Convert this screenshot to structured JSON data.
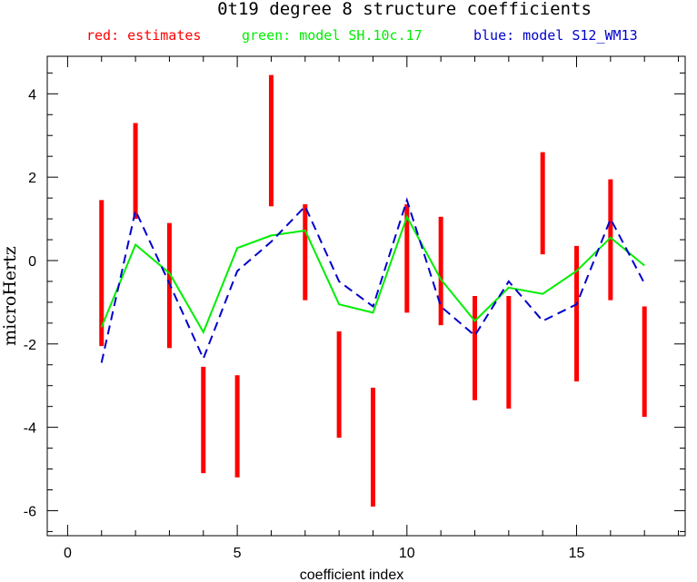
{
  "chart_data": {
    "type": "line",
    "title": "0t19 degree 8 structure coefficients",
    "legend": [
      {
        "text": "red: estimates",
        "color": "#ff0000"
      },
      {
        "text": "green: model SH.10c.17",
        "color": "#00ee00"
      },
      {
        "text": "blue: model S12_WM13",
        "color": "#0000cc"
      }
    ],
    "xlabel": "coefficient index",
    "ylabel": "microHertz",
    "xlim": [
      -0.6,
      18.2
    ],
    "ylim": [
      -6.6,
      4.9
    ],
    "x_ticks": [
      0,
      5,
      10,
      15
    ],
    "y_ticks": [
      -6,
      -4,
      -2,
      0,
      2,
      4
    ],
    "estimates": {
      "name": "red: estimates",
      "color": "#ff0000",
      "x": [
        1,
        2,
        3,
        4,
        5,
        6,
        7,
        8,
        9,
        10,
        11,
        12,
        13,
        14,
        15,
        16,
        17
      ],
      "low": [
        -2.05,
        1.0,
        -2.1,
        -5.1,
        -5.2,
        1.3,
        -0.95,
        -4.25,
        -5.9,
        -1.25,
        -1.55,
        -3.35,
        -3.55,
        0.15,
        -2.9,
        -0.95,
        -3.75
      ],
      "high": [
        1.45,
        3.3,
        0.9,
        -2.55,
        -2.75,
        4.45,
        1.35,
        -1.7,
        -3.05,
        1.35,
        1.05,
        -0.85,
        -0.85,
        2.6,
        0.35,
        1.95,
        -1.1
      ]
    },
    "series": [
      {
        "name": "green: model SH.10c.17",
        "color": "#00ee00",
        "dash": "solid",
        "x": [
          1,
          2,
          3,
          4,
          5,
          6,
          7,
          8,
          9,
          10,
          11,
          12,
          13,
          14,
          15,
          16,
          17
        ],
        "values": [
          -1.6,
          0.38,
          -0.3,
          -1.72,
          0.3,
          0.6,
          0.72,
          -1.05,
          -1.25,
          1.05,
          -0.45,
          -1.45,
          -0.65,
          -0.8,
          -0.25,
          0.55,
          -0.12
        ]
      },
      {
        "name": "blue: model S12_WM13",
        "color": "#0000cc",
        "dash": "dashed",
        "x": [
          1,
          2,
          3,
          4,
          5,
          6,
          7,
          8,
          9,
          10,
          11,
          12,
          13,
          14,
          15,
          16,
          17
        ],
        "values": [
          -2.45,
          1.2,
          -0.55,
          -2.35,
          -0.25,
          0.45,
          1.3,
          -0.5,
          -1.1,
          1.45,
          -1.1,
          -1.8,
          -0.5,
          -1.45,
          -1.05,
          1.0,
          -0.55
        ]
      }
    ]
  }
}
